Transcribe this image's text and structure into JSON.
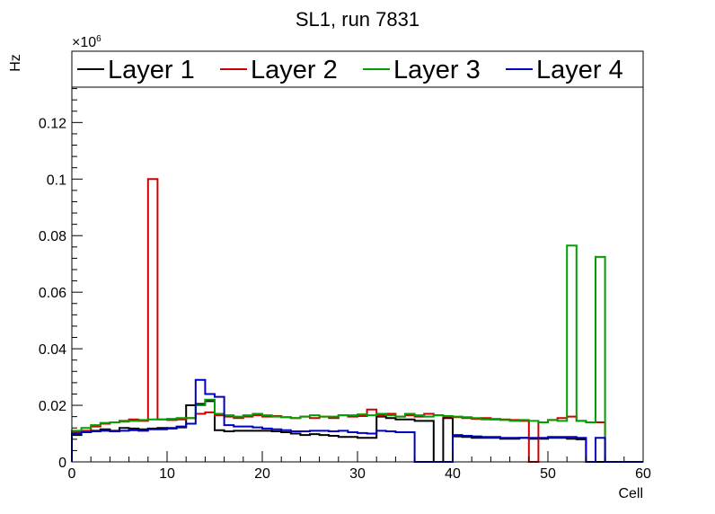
{
  "chart_data": {
    "type": "histogram-step",
    "title": "SL1, run 7831",
    "xlabel": "Cell",
    "ylabel": "Hz",
    "y_multiplier_label": "×10",
    "y_multiplier_exponent": "6",
    "xlim": [
      0,
      60
    ],
    "ylim": [
      0,
      0.1325
    ],
    "x_ticks": [
      0,
      10,
      20,
      30,
      40,
      50,
      60
    ],
    "x_tick_labels": [
      "0",
      "10",
      "20",
      "30",
      "40",
      "50",
      "60"
    ],
    "y_ticks": [
      0,
      0.02,
      0.04,
      0.06,
      0.08,
      0.1,
      0.12
    ],
    "y_tick_labels": [
      "0",
      "0.02",
      "0.04",
      "0.06",
      "0.08",
      "0.1",
      "0.12"
    ],
    "bin_edges_start": 0,
    "bin_width": 1,
    "legend_position": "top",
    "series": [
      {
        "name": "Layer 1",
        "color": "#000000",
        "values": [
          0.0095,
          0.0105,
          0.011,
          0.0115,
          0.011,
          0.012,
          0.0118,
          0.0115,
          0.0118,
          0.012,
          0.0118,
          0.0122,
          0.02,
          0.0205,
          0.0215,
          0.0112,
          0.0108,
          0.011,
          0.011,
          0.011,
          0.011,
          0.0108,
          0.0105,
          0.01,
          0.0095,
          0.0098,
          0.0095,
          0.0092,
          0.0088,
          0.0088,
          0.0085,
          0.0085,
          0.016,
          0.0155,
          0.015,
          0.015,
          0.0145,
          0.0145,
          0.0,
          0.0155,
          0.009,
          0.0088,
          0.0085,
          0.0085,
          0.0085,
          0.0082,
          0.0082,
          0.0085,
          0.0082,
          0.0082,
          0.0085,
          0.0085,
          0.0082,
          0.008,
          0.0,
          0.0,
          0.0,
          0.0,
          0.0,
          0.0
        ]
      },
      {
        "name": "Layer 2",
        "color": "#d00000",
        "values": [
          0.0105,
          0.011,
          0.0125,
          0.0135,
          0.014,
          0.0145,
          0.015,
          0.0145,
          0.1,
          0.015,
          0.0148,
          0.015,
          0.0155,
          0.017,
          0.0175,
          0.0165,
          0.016,
          0.0155,
          0.016,
          0.0165,
          0.016,
          0.0162,
          0.0158,
          0.0155,
          0.016,
          0.0155,
          0.016,
          0.0155,
          0.0165,
          0.016,
          0.0162,
          0.0185,
          0.0165,
          0.017,
          0.016,
          0.0165,
          0.016,
          0.017,
          0.0165,
          0.016,
          0.0158,
          0.0155,
          0.0152,
          0.0155,
          0.015,
          0.015,
          0.0148,
          0.0145,
          0.0,
          0.014,
          0.0148,
          0.0155,
          0.016,
          0.0145,
          0.014,
          0.014,
          0.0,
          0.0,
          0.0,
          0.0
        ]
      },
      {
        "name": "Layer 3",
        "color": "#00a000",
        "values": [
          0.011,
          0.012,
          0.013,
          0.0138,
          0.014,
          0.0142,
          0.0145,
          0.0148,
          0.015,
          0.015,
          0.0152,
          0.0155,
          0.0155,
          0.02,
          0.022,
          0.017,
          0.0165,
          0.016,
          0.0165,
          0.017,
          0.0165,
          0.016,
          0.0158,
          0.0155,
          0.016,
          0.0165,
          0.016,
          0.016,
          0.0165,
          0.0165,
          0.0168,
          0.0165,
          0.017,
          0.0165,
          0.016,
          0.017,
          0.0165,
          0.016,
          0.0165,
          0.0162,
          0.016,
          0.0158,
          0.0155,
          0.015,
          0.0152,
          0.0148,
          0.0145,
          0.0148,
          0.0145,
          0.014,
          0.0148,
          0.0145,
          0.0765,
          0.0145,
          0.014,
          0.0725,
          0.0,
          0.0,
          0.0,
          0.0
        ]
      },
      {
        "name": "Layer 4",
        "color": "#0000c0",
        "values": [
          0.01,
          0.0105,
          0.0108,
          0.011,
          0.0108,
          0.011,
          0.0112,
          0.011,
          0.0115,
          0.0115,
          0.012,
          0.0125,
          0.0135,
          0.029,
          0.024,
          0.023,
          0.013,
          0.0125,
          0.0125,
          0.0122,
          0.0118,
          0.0115,
          0.0112,
          0.0108,
          0.0108,
          0.011,
          0.011,
          0.0108,
          0.011,
          0.0105,
          0.0102,
          0.01,
          0.011,
          0.0108,
          0.0105,
          0.0105,
          0.0,
          0.0,
          0.0,
          0.0,
          0.0095,
          0.0092,
          0.009,
          0.0088,
          0.0088,
          0.0085,
          0.0085,
          0.0085,
          0.0085,
          0.0085,
          0.0088,
          0.0088,
          0.0088,
          0.0085,
          0.0,
          0.0085,
          0.0,
          0.0,
          0.0,
          0.0
        ]
      }
    ]
  }
}
